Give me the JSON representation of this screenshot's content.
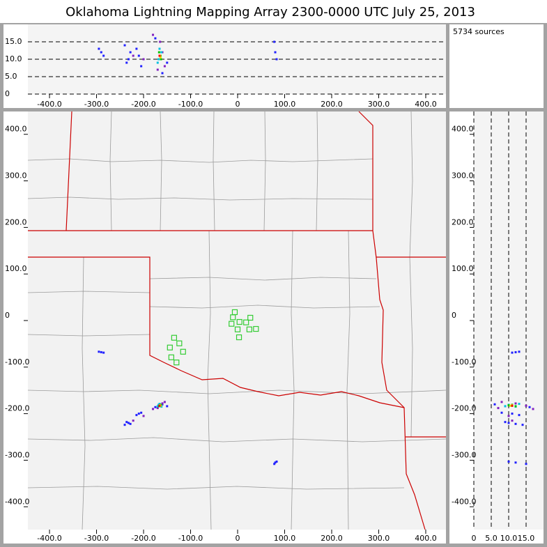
{
  "chart_data": {
    "type": "scatter",
    "title": "Oklahoma Lightning Mapping Array   2300-0000 UTC  July 25, 2013",
    "source_count": "5734 sources",
    "xlim": [
      -446,
      443
    ],
    "ylim": [
      -449,
      449
    ],
    "zlim": [
      0,
      20
    ],
    "xticks": [
      {
        "value": -400,
        "label": "-400.0"
      },
      {
        "value": -300,
        "label": "-300.0"
      },
      {
        "value": -200,
        "label": "-200.0"
      },
      {
        "value": -100,
        "label": "-100.0"
      },
      0,
      {
        "value": 100,
        "label": "100.0"
      },
      {
        "value": 200,
        "label": "200.0"
      },
      {
        "value": 300,
        "label": "300.0"
      },
      {
        "value": 400,
        "label": "400.0"
      }
    ],
    "yticks": [
      {
        "value": 400,
        "label": "400.0"
      },
      {
        "value": 300,
        "label": "300.0"
      },
      {
        "value": 200,
        "label": "200.0"
      },
      {
        "value": 100,
        "label": "100.0"
      },
      0,
      {
        "value": -100,
        "label": "-100.0"
      },
      {
        "value": -200,
        "label": "-200.0"
      },
      {
        "value": -300,
        "label": "-300.0"
      },
      {
        "value": -400,
        "label": "-400.0"
      }
    ],
    "zticks": [
      0,
      {
        "value": 5,
        "label": "5.0"
      },
      {
        "value": 10,
        "label": "10.0"
      },
      {
        "value": 15,
        "label": "15.0"
      }
    ],
    "grid": true,
    "stations": {
      "color": "#33cc33",
      "x": [
        -6,
        -10,
        4,
        -13,
        18,
        27,
        25,
        0,
        39,
        3,
        -135,
        -124,
        -144,
        -116,
        -141,
        -130
      ],
      "y": [
        18,
        7,
        -3,
        -7,
        -4,
        6,
        -19,
        -19,
        -18,
        -36,
        -37,
        -49,
        -58,
        -67,
        -79,
        -90
      ]
    },
    "series": [
      {
        "color": "#2020ff",
        "x": [
          -290,
          -295,
          -285,
          -232,
          -228,
          -236,
          -240,
          -210,
          -205,
          -215,
          80,
          78,
          83,
          -160,
          -175,
          -150
        ],
        "y": [
          -68,
          -67,
          -69,
          -220,
          -222,
          -218,
          -224,
          -200,
          -198,
          -203,
          -305,
          -308,
          -303,
          -180,
          -186,
          -184
        ],
        "alt": [
          12,
          13,
          11,
          10,
          12,
          9,
          14,
          11,
          8,
          13,
          12,
          15,
          10,
          6,
          16,
          9
        ]
      },
      {
        "color": "#8020c0",
        "x": [
          -165,
          -170,
          -160,
          -200,
          -222,
          -180,
          -155
        ],
        "y": [
          -183,
          -188,
          -178,
          -205,
          -215,
          -190,
          -175
        ],
        "alt": [
          15,
          7,
          12,
          10,
          11,
          17,
          8
        ]
      },
      {
        "color": "#00c0e0",
        "x": [
          -168,
          -162,
          -166,
          -170
        ],
        "y": [
          -181,
          -185,
          -179,
          -184
        ],
        "alt": [
          10,
          12,
          13,
          9
        ]
      },
      {
        "color": "#00c000",
        "x": [
          -165,
          -163,
          -167,
          -164
        ],
        "y": [
          -183,
          -182,
          -184,
          -181
        ],
        "alt": [
          11,
          10,
          12,
          11
        ]
      },
      {
        "color": "#e0e000",
        "x": [
          -165,
          -164
        ],
        "y": [
          -182,
          -183
        ],
        "alt": [
          11,
          10.5
        ]
      },
      {
        "color": "#ff0000",
        "x": [
          -166
        ],
        "y": [
          -183
        ],
        "alt": [
          11
        ]
      }
    ]
  }
}
